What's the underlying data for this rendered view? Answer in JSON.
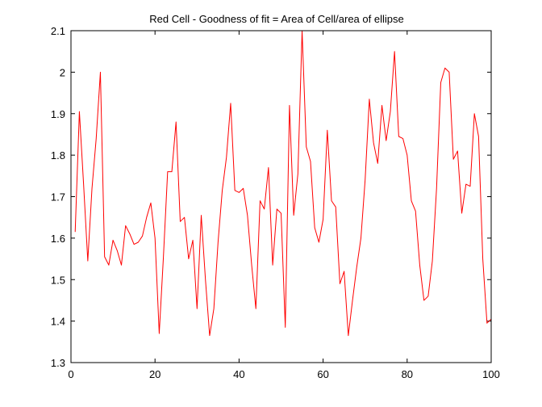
{
  "chart_data": {
    "type": "line",
    "title": "Red Cell - Goodness of fit = Area of Cell/area of ellipse",
    "xlabel": "",
    "ylabel": "",
    "xlim": [
      0,
      100
    ],
    "ylim": [
      1.3,
      2.1
    ],
    "xticks": [
      0,
      20,
      40,
      60,
      80,
      100
    ],
    "yticks": [
      1.3,
      1.4,
      1.5,
      1.6,
      1.7,
      1.8,
      1.9,
      2,
      2.1
    ],
    "xtick_labels": [
      "0",
      "20",
      "40",
      "60",
      "80",
      "100"
    ],
    "ytick_labels": [
      "1.3",
      "1.4",
      "1.5",
      "1.6",
      "1.7",
      "1.8",
      "1.9",
      "2",
      "2.1"
    ],
    "grid": false,
    "series": [
      {
        "color": "#ff0000",
        "x": [
          1,
          2,
          3,
          4,
          5,
          6,
          7,
          8,
          9,
          10,
          11,
          12,
          13,
          14,
          15,
          16,
          17,
          18,
          19,
          20,
          21,
          22,
          23,
          24,
          25,
          26,
          27,
          28,
          29,
          30,
          31,
          32,
          33,
          34,
          35,
          36,
          37,
          38,
          39,
          40,
          41,
          42,
          43,
          44,
          45,
          46,
          47,
          48,
          49,
          50,
          51,
          52,
          53,
          54,
          55,
          56,
          57,
          58,
          59,
          60,
          61,
          62,
          63,
          64,
          65,
          66,
          67,
          68,
          69,
          70,
          71,
          72,
          73,
          74,
          75,
          76,
          77,
          78,
          79,
          80,
          81,
          82,
          83,
          84,
          85,
          86,
          87,
          88,
          89,
          90,
          91,
          92,
          93,
          94,
          95,
          96,
          97,
          98,
          99,
          100
        ],
        "y": [
          1.615,
          1.905,
          1.73,
          1.545,
          1.72,
          1.84,
          2.0,
          1.555,
          1.535,
          1.595,
          1.57,
          1.535,
          1.63,
          1.61,
          1.585,
          1.59,
          1.605,
          1.65,
          1.685,
          1.6,
          1.37,
          1.555,
          1.76,
          1.76,
          1.88,
          1.64,
          1.65,
          1.55,
          1.595,
          1.43,
          1.655,
          1.5,
          1.365,
          1.43,
          1.59,
          1.715,
          1.795,
          1.925,
          1.715,
          1.71,
          1.72,
          1.655,
          1.535,
          1.43,
          1.69,
          1.67,
          1.77,
          1.535,
          1.67,
          1.66,
          1.385,
          1.92,
          1.655,
          1.755,
          2.1,
          1.82,
          1.785,
          1.625,
          1.59,
          1.645,
          1.86,
          1.69,
          1.675,
          1.49,
          1.52,
          1.365,
          1.45,
          1.53,
          1.6,
          1.74,
          1.935,
          1.83,
          1.78,
          1.92,
          1.835,
          1.905,
          2.05,
          1.845,
          1.84,
          1.8,
          1.69,
          1.665,
          1.535,
          1.45,
          1.46,
          1.545,
          1.72,
          1.975,
          2.01,
          2.0,
          1.79,
          1.81,
          1.66,
          1.73,
          1.725,
          1.9,
          1.845,
          1.55,
          1.395,
          1.405
        ]
      }
    ]
  }
}
